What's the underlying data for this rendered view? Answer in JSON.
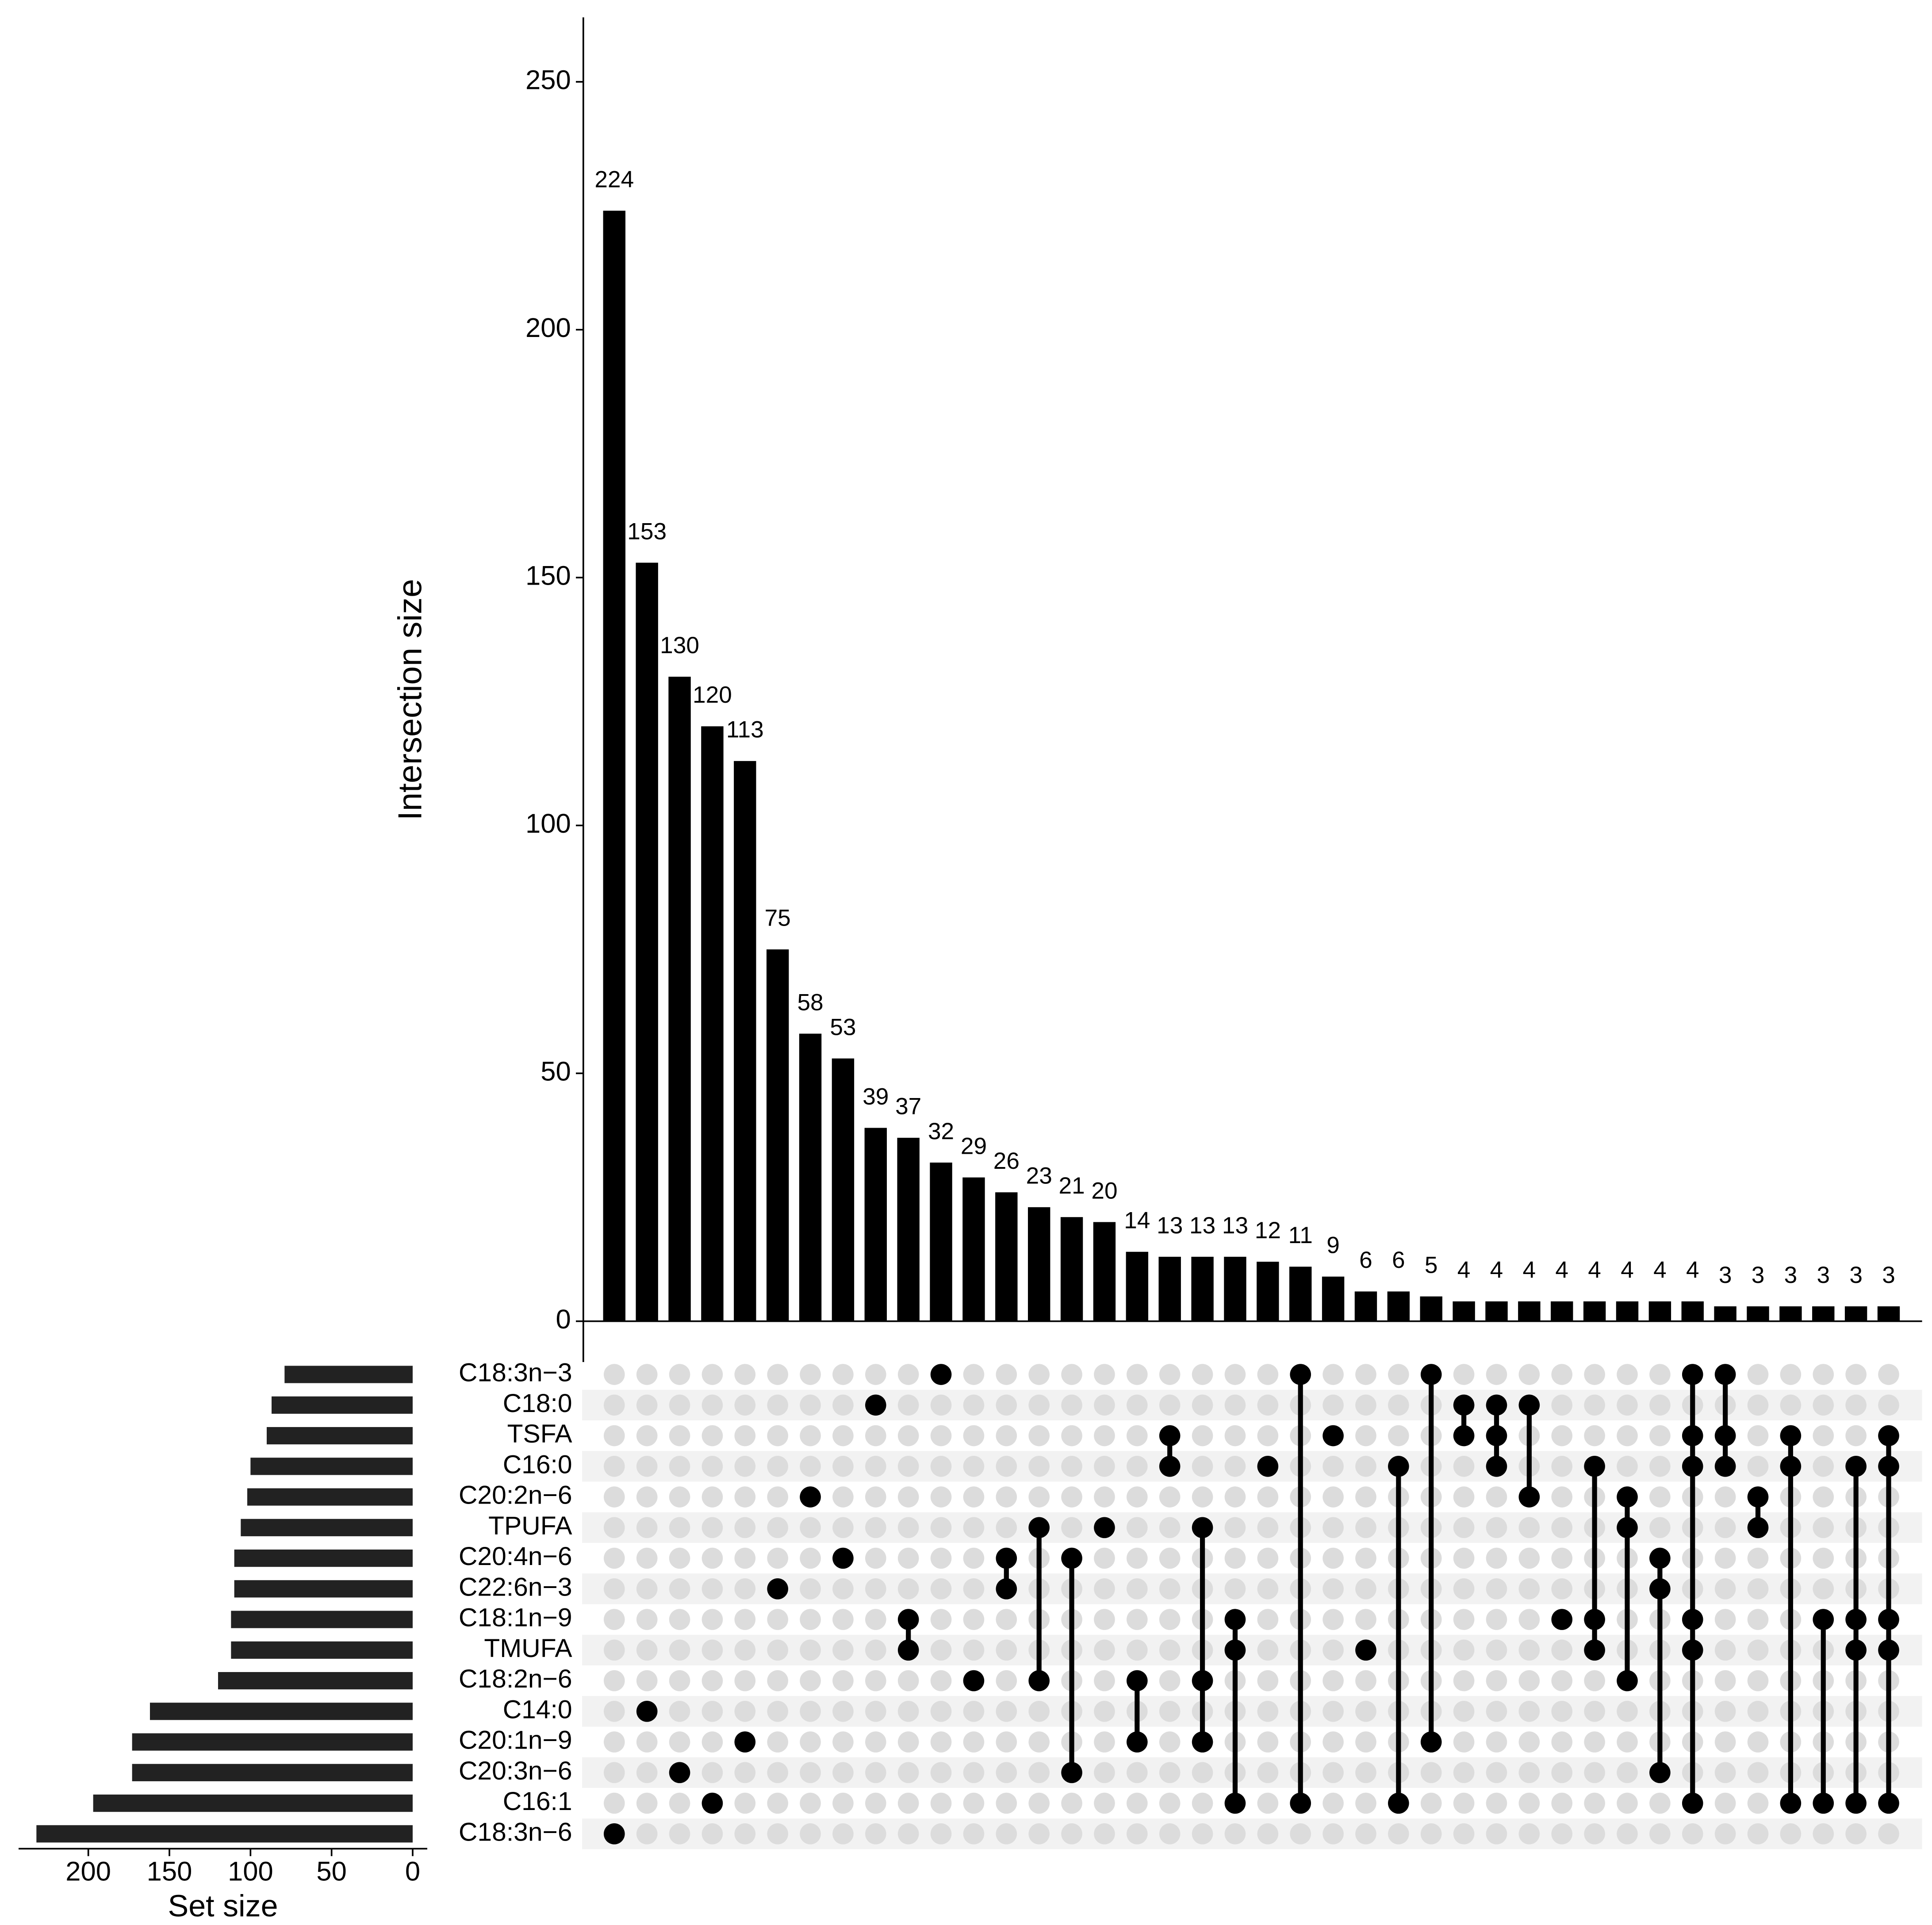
{
  "chart_data": {
    "type": "upset",
    "y_label": "Intersection size",
    "x_label": "Set size",
    "sets": [
      "C18:3n−3",
      "C18:0",
      "TSFA",
      "C16:0",
      "C20:2n−6",
      "TPUFA",
      "C20:4n−6",
      "C22:6n−3",
      "C18:1n−9",
      "TMUFA",
      "C18:2n−6",
      "C14:0",
      "C20:1n−9",
      "C20:3n−6",
      "C16:1",
      "C18:3n−6"
    ],
    "set_sizes": [
      79,
      87,
      90,
      100,
      102,
      106,
      110,
      110,
      112,
      112,
      120,
      162,
      173,
      173,
      197,
      232
    ],
    "set_color": "#222222",
    "xlim": [
      -9,
      243
    ],
    "xticks": [
      0,
      50,
      100,
      150,
      200
    ],
    "bar_color": "#000000",
    "ylim": [
      0,
      263
    ],
    "yticks": [
      0,
      50,
      100,
      150,
      200,
      250
    ],
    "values": [
      224,
      153,
      130,
      120,
      113,
      75,
      58,
      53,
      39,
      37,
      32,
      29,
      26,
      23,
      21,
      20,
      14,
      13,
      13,
      13,
      12,
      11,
      9,
      6,
      6,
      5,
      4,
      4,
      4,
      4,
      4,
      4,
      4,
      4,
      3,
      3,
      3,
      3,
      3,
      3
    ],
    "members": [
      [
        "C18:3n−6"
      ],
      [
        "C14:0"
      ],
      [
        "C20:3n−6"
      ],
      [
        "C16:1"
      ],
      [
        "C20:1n−9"
      ],
      [
        "C22:6n−3"
      ],
      [
        "C20:2n−6"
      ],
      [
        "C20:4n−6"
      ],
      [
        "C18:0"
      ],
      [
        "C18:1n−9",
        "TMUFA"
      ],
      [
        "C18:3n−3"
      ],
      [
        "C18:2n−6"
      ],
      [
        "C20:4n−6",
        "C22:6n−3"
      ],
      [
        "TPUFA",
        "C18:2n−6"
      ],
      [
        "C20:4n−6",
        "C20:3n−6"
      ],
      [
        "TPUFA"
      ],
      [
        "C18:2n−6",
        "C20:1n−9"
      ],
      [
        "TSFA",
        "C16:0"
      ],
      [
        "TPUFA",
        "C18:2n−6",
        "C20:1n−9"
      ],
      [
        "C18:1n−9",
        "TMUFA",
        "C16:1"
      ],
      [
        "C16:0"
      ],
      [
        "C18:3n−3",
        "C16:1"
      ],
      [
        "TSFA"
      ],
      [
        "TMUFA"
      ],
      [
        "C16:0",
        "C16:1"
      ],
      [
        "C18:3n−3",
        "C20:1n−9"
      ],
      [
        "C18:0",
        "TSFA"
      ],
      [
        "C18:0",
        "TSFA",
        "C16:0"
      ],
      [
        "C18:0",
        "C20:2n−6"
      ],
      [
        "C18:1n−9"
      ],
      [
        "C16:0",
        "C18:1n−9",
        "TMUFA"
      ],
      [
        "C20:2n−6",
        "TPUFA",
        "C18:2n−6"
      ],
      [
        "C20:4n−6",
        "C22:6n−3",
        "C20:3n−6"
      ],
      [
        "C18:3n−3",
        "TSFA",
        "C16:0",
        "C18:1n−9",
        "TMUFA",
        "C16:1"
      ],
      [
        "C18:3n−3",
        "TSFA",
        "C16:0"
      ],
      [
        "C20:2n−6",
        "TPUFA"
      ],
      [
        "TSFA",
        "C16:0",
        "C16:1"
      ],
      [
        "C18:1n−9",
        "C16:1"
      ],
      [
        "C16:0",
        "C18:1n−9",
        "TMUFA",
        "C16:1"
      ],
      [
        "TSFA",
        "C16:0",
        "C18:1n−9",
        "TMUFA",
        "C16:1"
      ]
    ]
  }
}
